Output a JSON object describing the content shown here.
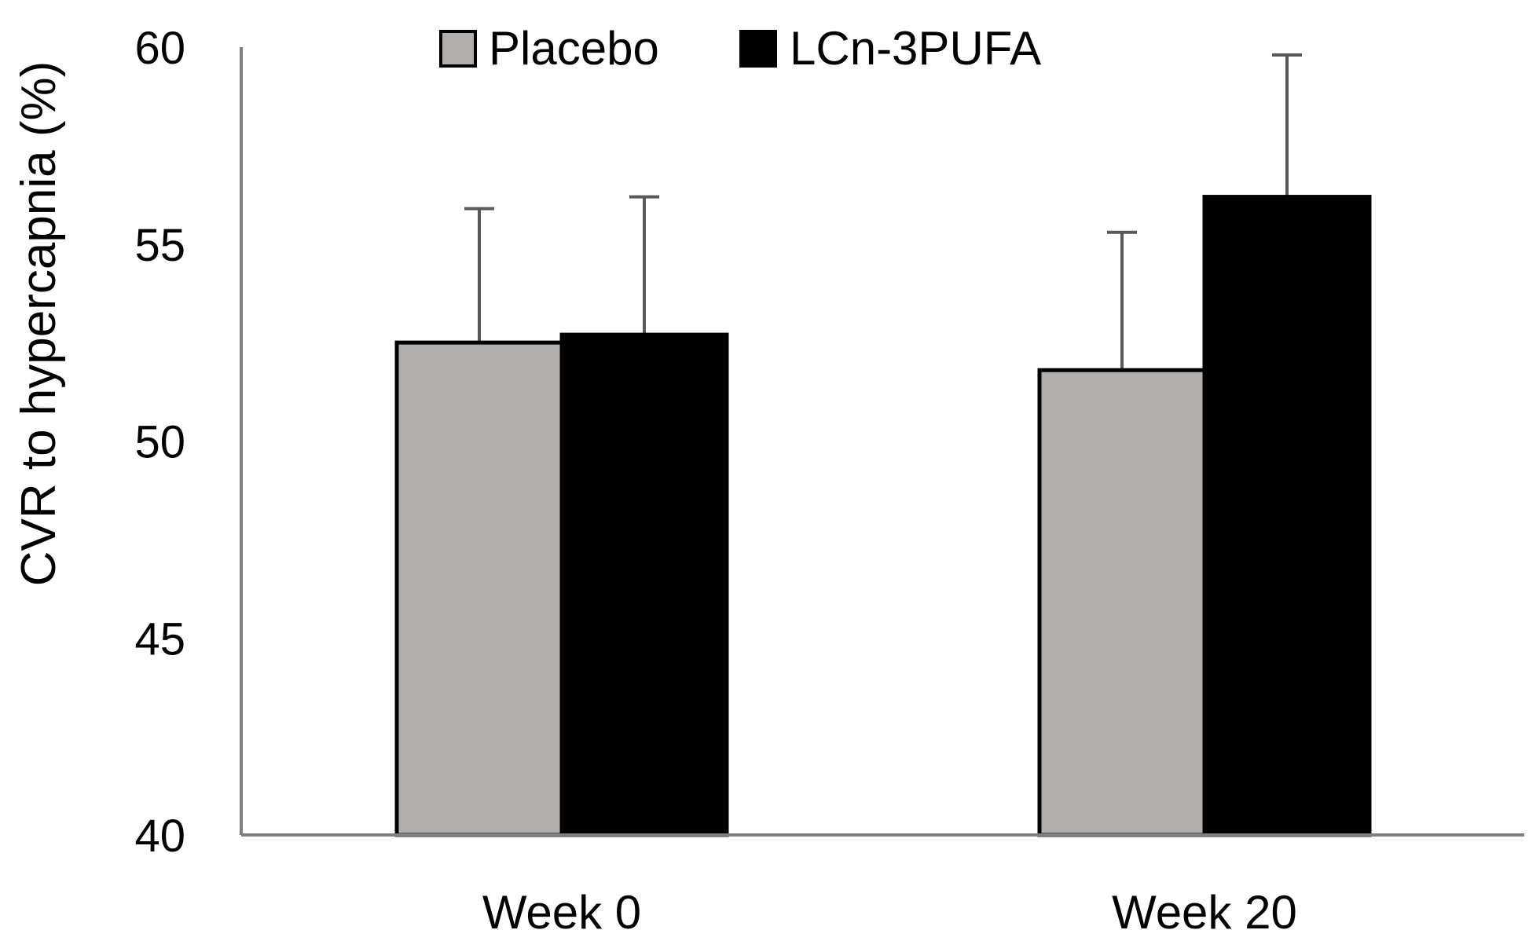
{
  "chart_data": {
    "type": "bar",
    "title": "",
    "xlabel": "",
    "ylabel": "CVR to hypercapnia (%)",
    "categories": [
      "Week 0",
      "Week 20"
    ],
    "series": [
      {
        "name": "Placebo",
        "color": "#b2aeac",
        "values": [
          52.5,
          51.8
        ],
        "error_plus": [
          3.4,
          3.5
        ]
      },
      {
        "name": "LCn-3PUFA",
        "color": "#000000",
        "values": [
          52.7,
          56.2
        ],
        "error_plus": [
          3.5,
          3.6
        ]
      }
    ],
    "ylim": [
      40,
      60
    ],
    "yticks": [
      "40",
      "45",
      "50",
      "55",
      "60"
    ],
    "grid": false,
    "legend_position": "top-center",
    "axis_color": "#7f7f7f",
    "error_bar_color": "#595959"
  }
}
